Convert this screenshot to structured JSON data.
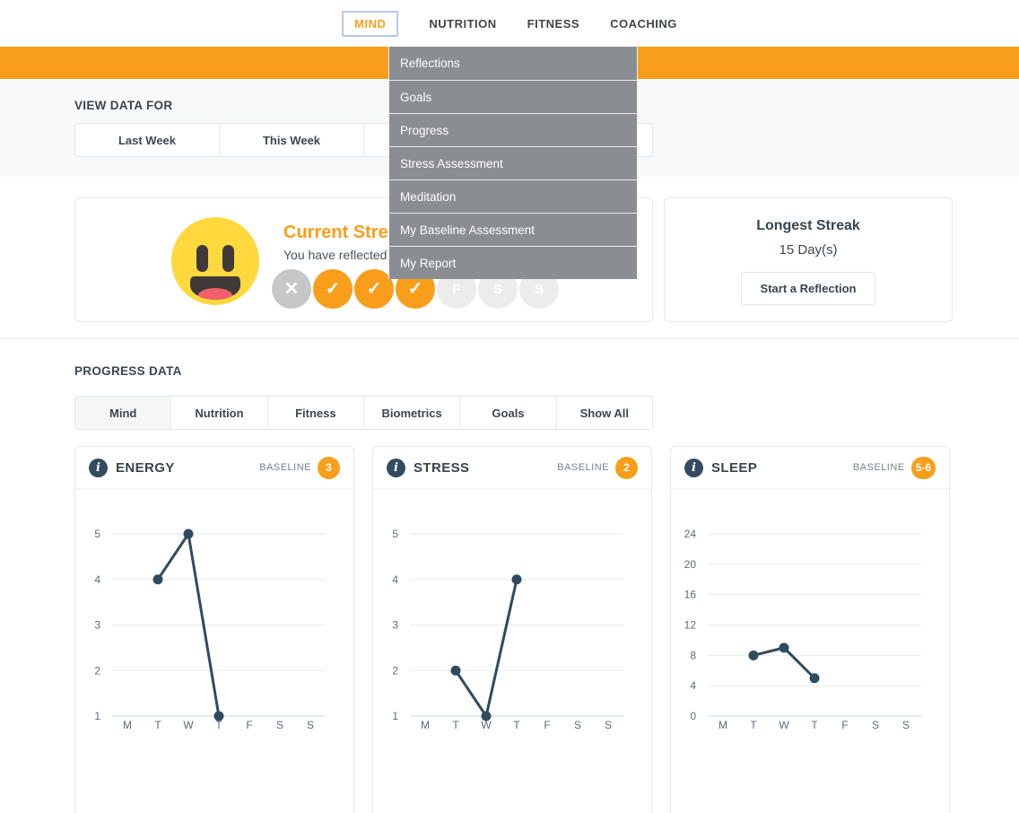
{
  "colors": {
    "accent_orange": "#F99E1B",
    "menu_bg": "#8A8E93",
    "chart_line": "#2F4B5F",
    "grid_line": "#E8EAED",
    "axis_line": "#C9D4DB",
    "tick_text": "#5F6A72"
  },
  "nav": {
    "items": [
      {
        "label": "MIND",
        "active": true
      },
      {
        "label": "NUTRITION",
        "active": false
      },
      {
        "label": "FITNESS",
        "active": false
      },
      {
        "label": "COACHING",
        "active": false
      }
    ]
  },
  "menu": {
    "items": [
      "Reflections",
      "Goals",
      "Progress",
      "Stress Assessment",
      "Meditation",
      "My Baseline Assessment",
      "My Report"
    ]
  },
  "view_data": {
    "heading": "VIEW DATA FOR",
    "tabs": [
      {
        "label": "Last Week",
        "active": false
      },
      {
        "label": "This Week",
        "active": false
      },
      {
        "label": "",
        "active": false
      },
      {
        "label": "",
        "active": false
      }
    ]
  },
  "streak": {
    "title": "Current Streak",
    "subtitle": "You have reflected 3 d",
    "days": [
      {
        "state": "missed",
        "glyph": "x"
      },
      {
        "state": "done",
        "glyph": "check"
      },
      {
        "state": "done",
        "glyph": "check"
      },
      {
        "state": "done",
        "glyph": "check"
      },
      {
        "state": "future",
        "glyph": "F"
      },
      {
        "state": "future",
        "glyph": "S"
      },
      {
        "state": "future",
        "glyph": "S"
      }
    ]
  },
  "longest": {
    "title": "Longest Streak",
    "value": "15 Day(s)",
    "button_label": "Start a Reflection"
  },
  "progress": {
    "heading": "PROGRESS DATA",
    "tabs": [
      {
        "label": "Mind",
        "active": true
      },
      {
        "label": "Nutrition",
        "active": false
      },
      {
        "label": "Fitness",
        "active": false
      },
      {
        "label": "Biometrics",
        "active": false
      },
      {
        "label": "Goals",
        "active": false
      },
      {
        "label": "Show All",
        "active": false
      }
    ]
  },
  "baseline_label": "BASELINE",
  "chart_data": [
    {
      "type": "line",
      "title": "ENERGY",
      "baseline": "3",
      "categories": [
        "M",
        "T",
        "W",
        "T",
        "F",
        "S",
        "S"
      ],
      "values": [
        null,
        4,
        5,
        1,
        null,
        null,
        null
      ],
      "yticks": [
        1,
        2,
        3,
        4,
        5
      ],
      "ylim": [
        1,
        5
      ],
      "grid": true,
      "legend": false
    },
    {
      "type": "line",
      "title": "STRESS",
      "baseline": "2",
      "categories": [
        "M",
        "T",
        "W",
        "T",
        "F",
        "S",
        "S"
      ],
      "values": [
        null,
        2,
        1,
        4,
        null,
        null,
        null
      ],
      "yticks": [
        1,
        2,
        3,
        4,
        5
      ],
      "ylim": [
        1,
        5
      ],
      "grid": true,
      "legend": false
    },
    {
      "type": "line",
      "title": "SLEEP",
      "baseline": "5-6",
      "categories": [
        "M",
        "T",
        "W",
        "T",
        "F",
        "S",
        "S"
      ],
      "values": [
        null,
        8,
        9,
        5,
        null,
        null,
        null
      ],
      "yticks": [
        0,
        4,
        8,
        12,
        16,
        20,
        24
      ],
      "ylim": [
        0,
        24
      ],
      "grid": true,
      "legend": false
    }
  ]
}
